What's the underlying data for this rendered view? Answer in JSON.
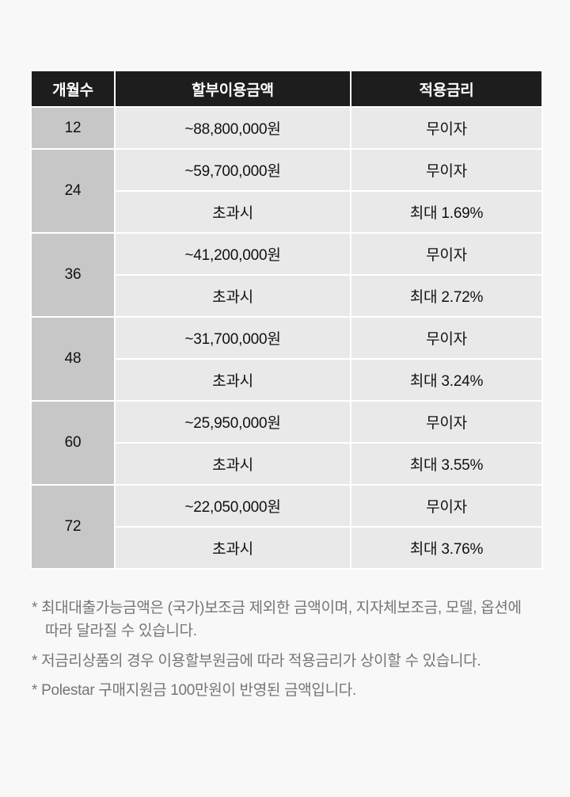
{
  "table": {
    "headers": [
      "개월수",
      "할부이용금액",
      "적용금리"
    ],
    "groups": [
      {
        "months": "12",
        "rows": [
          {
            "amount": "~88,800,000원",
            "rate": "무이자"
          }
        ]
      },
      {
        "months": "24",
        "rows": [
          {
            "amount": "~59,700,000원",
            "rate": "무이자"
          },
          {
            "amount": "초과시",
            "rate": "최대 1.69%"
          }
        ]
      },
      {
        "months": "36",
        "rows": [
          {
            "amount": "~41,200,000원",
            "rate": "무이자"
          },
          {
            "amount": "초과시",
            "rate": "최대 2.72%"
          }
        ]
      },
      {
        "months": "48",
        "rows": [
          {
            "amount": "~31,700,000원",
            "rate": "무이자"
          },
          {
            "amount": "초과시",
            "rate": "최대 3.24%"
          }
        ]
      },
      {
        "months": "60",
        "rows": [
          {
            "amount": "~25,950,000원",
            "rate": "무이자"
          },
          {
            "amount": "초과시",
            "rate": "최대 3.55%"
          }
        ]
      },
      {
        "months": "72",
        "rows": [
          {
            "amount": "~22,050,000원",
            "rate": "무이자"
          },
          {
            "amount": "초과시",
            "rate": "최대 3.76%"
          }
        ]
      }
    ]
  },
  "footnotes": [
    "* 최대대출가능금액은 (국가)보조금 제외한 금액이며, 지자체보조금, 모델, 옵션에 따라 달라질 수 있습니다.",
    "* 저금리상품의 경우 이용할부원금에 따라 적용금리가 상이할 수 있습니다.",
    "* Polestar 구매지원금 100만원이 반영된 금액입니다."
  ],
  "colors": {
    "page_bg": "#f8f8f8",
    "header_bg": "#1d1d1d",
    "header_text": "#ffffff",
    "months_bg": "#c7c7c7",
    "cell_bg": "#e9e9e9",
    "cell_text": "#111111",
    "gap_color": "#ffffff",
    "footnote_text": "#757575"
  }
}
